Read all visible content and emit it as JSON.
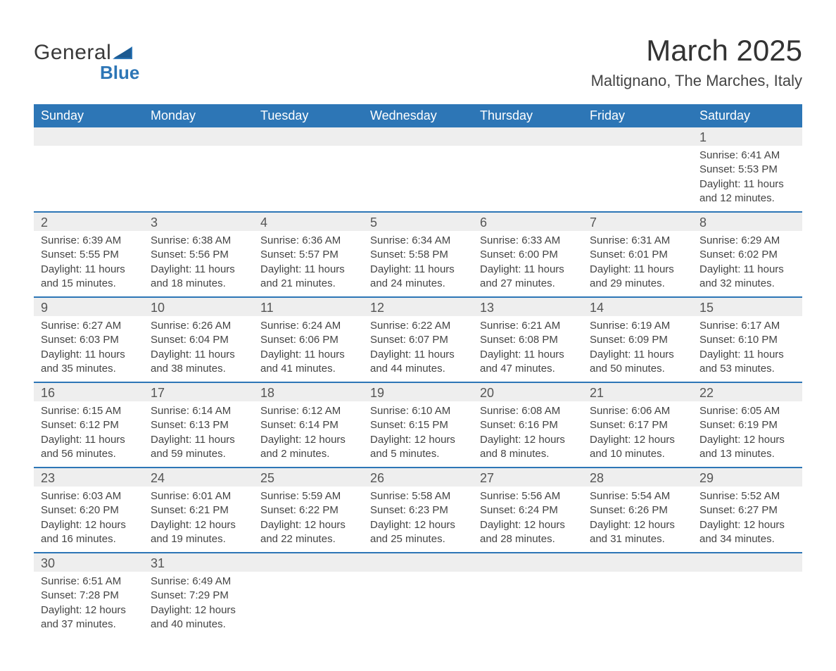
{
  "logo": {
    "word1": "General",
    "word2": "Blue",
    "accent": "#2d76b6"
  },
  "title": "March 2025",
  "location": "Maltignano, The Marches, Italy",
  "colors": {
    "header_bg": "#2d76b6",
    "header_text": "#ffffff",
    "daynum_bg": "#eeeeee",
    "row_border": "#2d76b6",
    "text": "#444444",
    "background": "#ffffff"
  },
  "weekdays": [
    "Sunday",
    "Monday",
    "Tuesday",
    "Wednesday",
    "Thursday",
    "Friday",
    "Saturday"
  ],
  "weeks": [
    [
      null,
      null,
      null,
      null,
      null,
      null,
      {
        "n": 1,
        "sr": "6:41 AM",
        "ss": "5:53 PM",
        "dl": "11 hours and 12 minutes."
      }
    ],
    [
      {
        "n": 2,
        "sr": "6:39 AM",
        "ss": "5:55 PM",
        "dl": "11 hours and 15 minutes."
      },
      {
        "n": 3,
        "sr": "6:38 AM",
        "ss": "5:56 PM",
        "dl": "11 hours and 18 minutes."
      },
      {
        "n": 4,
        "sr": "6:36 AM",
        "ss": "5:57 PM",
        "dl": "11 hours and 21 minutes."
      },
      {
        "n": 5,
        "sr": "6:34 AM",
        "ss": "5:58 PM",
        "dl": "11 hours and 24 minutes."
      },
      {
        "n": 6,
        "sr": "6:33 AM",
        "ss": "6:00 PM",
        "dl": "11 hours and 27 minutes."
      },
      {
        "n": 7,
        "sr": "6:31 AM",
        "ss": "6:01 PM",
        "dl": "11 hours and 29 minutes."
      },
      {
        "n": 8,
        "sr": "6:29 AM",
        "ss": "6:02 PM",
        "dl": "11 hours and 32 minutes."
      }
    ],
    [
      {
        "n": 9,
        "sr": "6:27 AM",
        "ss": "6:03 PM",
        "dl": "11 hours and 35 minutes."
      },
      {
        "n": 10,
        "sr": "6:26 AM",
        "ss": "6:04 PM",
        "dl": "11 hours and 38 minutes."
      },
      {
        "n": 11,
        "sr": "6:24 AM",
        "ss": "6:06 PM",
        "dl": "11 hours and 41 minutes."
      },
      {
        "n": 12,
        "sr": "6:22 AM",
        "ss": "6:07 PM",
        "dl": "11 hours and 44 minutes."
      },
      {
        "n": 13,
        "sr": "6:21 AM",
        "ss": "6:08 PM",
        "dl": "11 hours and 47 minutes."
      },
      {
        "n": 14,
        "sr": "6:19 AM",
        "ss": "6:09 PM",
        "dl": "11 hours and 50 minutes."
      },
      {
        "n": 15,
        "sr": "6:17 AM",
        "ss": "6:10 PM",
        "dl": "11 hours and 53 minutes."
      }
    ],
    [
      {
        "n": 16,
        "sr": "6:15 AM",
        "ss": "6:12 PM",
        "dl": "11 hours and 56 minutes."
      },
      {
        "n": 17,
        "sr": "6:14 AM",
        "ss": "6:13 PM",
        "dl": "11 hours and 59 minutes."
      },
      {
        "n": 18,
        "sr": "6:12 AM",
        "ss": "6:14 PM",
        "dl": "12 hours and 2 minutes."
      },
      {
        "n": 19,
        "sr": "6:10 AM",
        "ss": "6:15 PM",
        "dl": "12 hours and 5 minutes."
      },
      {
        "n": 20,
        "sr": "6:08 AM",
        "ss": "6:16 PM",
        "dl": "12 hours and 8 minutes."
      },
      {
        "n": 21,
        "sr": "6:06 AM",
        "ss": "6:17 PM",
        "dl": "12 hours and 10 minutes."
      },
      {
        "n": 22,
        "sr": "6:05 AM",
        "ss": "6:19 PM",
        "dl": "12 hours and 13 minutes."
      }
    ],
    [
      {
        "n": 23,
        "sr": "6:03 AM",
        "ss": "6:20 PM",
        "dl": "12 hours and 16 minutes."
      },
      {
        "n": 24,
        "sr": "6:01 AM",
        "ss": "6:21 PM",
        "dl": "12 hours and 19 minutes."
      },
      {
        "n": 25,
        "sr": "5:59 AM",
        "ss": "6:22 PM",
        "dl": "12 hours and 22 minutes."
      },
      {
        "n": 26,
        "sr": "5:58 AM",
        "ss": "6:23 PM",
        "dl": "12 hours and 25 minutes."
      },
      {
        "n": 27,
        "sr": "5:56 AM",
        "ss": "6:24 PM",
        "dl": "12 hours and 28 minutes."
      },
      {
        "n": 28,
        "sr": "5:54 AM",
        "ss": "6:26 PM",
        "dl": "12 hours and 31 minutes."
      },
      {
        "n": 29,
        "sr": "5:52 AM",
        "ss": "6:27 PM",
        "dl": "12 hours and 34 minutes."
      }
    ],
    [
      {
        "n": 30,
        "sr": "6:51 AM",
        "ss": "7:28 PM",
        "dl": "12 hours and 37 minutes."
      },
      {
        "n": 31,
        "sr": "6:49 AM",
        "ss": "7:29 PM",
        "dl": "12 hours and 40 minutes."
      },
      null,
      null,
      null,
      null,
      null
    ]
  ],
  "labels": {
    "sunrise": "Sunrise: ",
    "sunset": "Sunset: ",
    "daylight": "Daylight: "
  }
}
